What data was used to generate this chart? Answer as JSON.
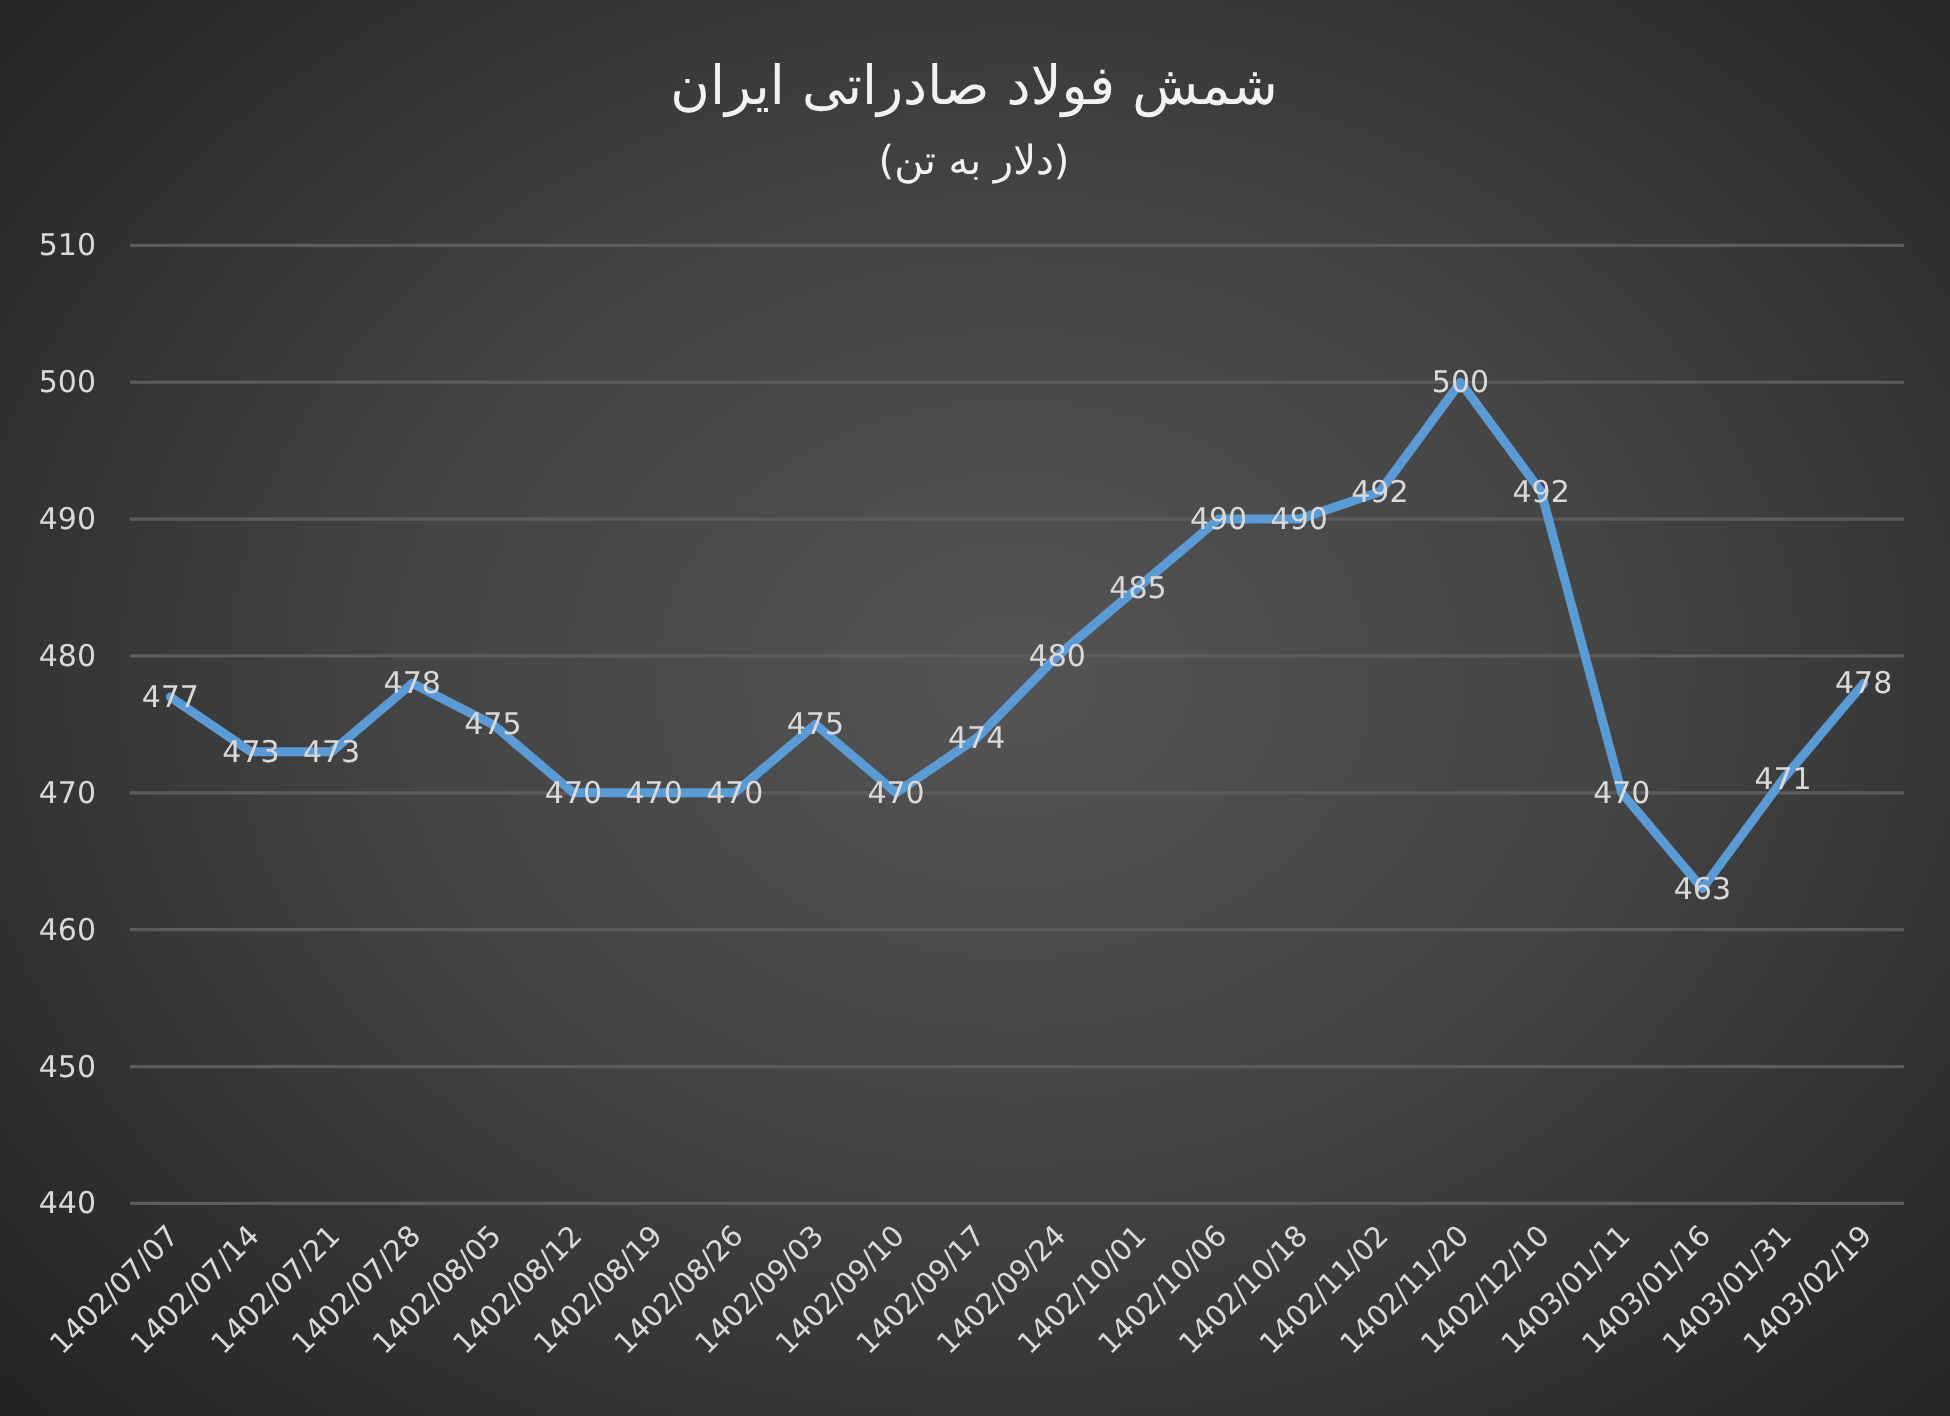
{
  "chart_data": {
    "type": "line",
    "title": "شمش فولاد صادراتی ایران",
    "subtitle": "(دلار به تن)",
    "categories": [
      "1402/07/07",
      "1402/07/14",
      "1402/07/21",
      "1402/07/28",
      "1402/08/05",
      "1402/08/12",
      "1402/08/19",
      "1402/08/26",
      "1402/09/03",
      "1402/09/10",
      "1402/09/17",
      "1402/09/24",
      "1402/10/01",
      "1402/10/06",
      "1402/10/18",
      "1402/11/02",
      "1402/11/20",
      "1402/12/10",
      "1403/01/11",
      "1403/01/16",
      "1403/01/31",
      "1403/02/19"
    ],
    "values": [
      477,
      473,
      473,
      478,
      475,
      470,
      470,
      470,
      475,
      470,
      474,
      480,
      485,
      490,
      490,
      492,
      500,
      492,
      470,
      463,
      471,
      478
    ],
    "color": "#5b9bd5",
    "line_style": "solid",
    "ylim": [
      440,
      510
    ],
    "yticks": [
      440,
      450,
      460,
      470,
      480,
      490,
      500,
      510
    ],
    "grid": "y",
    "data_labels": true
  }
}
